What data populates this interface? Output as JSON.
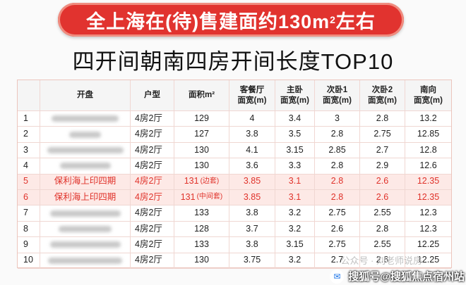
{
  "banner": {
    "text": "全上海在(待)售建面约130m",
    "sup": "2",
    "suffix": "左右"
  },
  "title": "四开间朝南四房开间长度TOP10",
  "table": {
    "headers": [
      "",
      "开盘",
      "户型",
      "面积m²",
      "客餐厅\n面宽(m)",
      "主卧\n面宽(m)",
      "次卧1\n面宽(m)",
      "次卧2\n面宽(m)",
      "南向\n面宽(m)"
    ],
    "rows": [
      {
        "no": "1",
        "name": "",
        "type": "4房2厅",
        "area": "129",
        "note": "",
        "v": [
          "4",
          "3.4",
          "3",
          "2.8",
          "13.2"
        ],
        "hl": false,
        "blur": 95
      },
      {
        "no": "2",
        "name": "",
        "type": "4房2厅",
        "area": "127",
        "note": "",
        "v": [
          "3.8",
          "3.5",
          "2.8",
          "2.75",
          "12.85"
        ],
        "hl": false,
        "blur": 45
      },
      {
        "no": "3",
        "name": "",
        "type": "4房2厅",
        "area": "130",
        "note": "",
        "v": [
          "4.1",
          "3.15",
          "2.85",
          "2.7",
          "12.8"
        ],
        "hl": false,
        "blur": 108
      },
      {
        "no": "4",
        "name": "",
        "type": "4房2厅",
        "area": "130",
        "note": "",
        "v": [
          "3.6",
          "3.3",
          "2.8",
          "2.9",
          "12.6"
        ],
        "hl": false,
        "blur": 72
      },
      {
        "no": "5",
        "name": "保利海上印四期",
        "type": "4房2厅",
        "area": "131",
        "note": "(边套)",
        "v": [
          "3.85",
          "3.1",
          "2.8",
          "2.6",
          "12.35"
        ],
        "hl": true,
        "blur": 0
      },
      {
        "no": "6",
        "name": "保利海上印四期",
        "type": "4房2厅",
        "area": "131",
        "note": "(中间套)",
        "v": [
          "3.85",
          "3.1",
          "2.8",
          "2.6",
          "12.35"
        ],
        "hl": true,
        "blur": 0
      },
      {
        "no": "7",
        "name": "",
        "type": "4房2厅",
        "area": "133",
        "note": "",
        "v": [
          "3.8",
          "3.2",
          "2.75",
          "2.55",
          "12.3"
        ],
        "hl": false,
        "blur": 100
      },
      {
        "no": "8",
        "name": "",
        "type": "4房2厅",
        "area": "128",
        "note": "",
        "v": [
          "3.7",
          "3.2",
          "2.6",
          "2.8",
          "12.3"
        ],
        "hl": false,
        "blur": 75
      },
      {
        "no": "9",
        "name": "",
        "type": "4房2厅",
        "area": "133",
        "note": "",
        "v": [
          "3.8",
          "3.15",
          "2.75",
          "2.55",
          "12.25"
        ],
        "hl": false,
        "blur": 100
      },
      {
        "no": "10",
        "name": "",
        "type": "4房2厅",
        "area": "130",
        "note": "",
        "v": [
          "3.75",
          "3.2",
          "2.7",
          "2.6",
          "12.25"
        ],
        "hl": false,
        "blur": 105
      }
    ]
  },
  "watermark": {
    "text": "搜狐号@搜狐焦点宿州站",
    "icon": "sohu-logo-icon"
  },
  "faint_overlay": "公众号 · 刘老师说房"
}
